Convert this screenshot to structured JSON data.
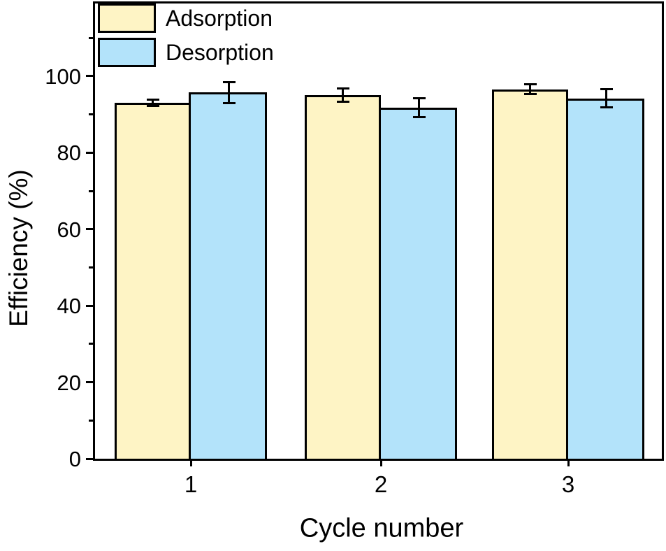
{
  "chart_data": {
    "type": "bar",
    "title": "",
    "xlabel": "Cycle number",
    "ylabel": "Efficiency (%)",
    "categories": [
      "1",
      "2",
      "3"
    ],
    "series": [
      {
        "name": "Adsorption",
        "color": "#FEF4C5",
        "values": [
          93.0,
          95.1,
          96.6
        ],
        "errors": [
          0.8,
          1.7,
          1.2
        ]
      },
      {
        "name": "Desorption",
        "color": "#B3E3FA",
        "values": [
          95.7,
          91.8,
          94.2
        ],
        "errors": [
          2.8,
          2.5,
          2.4
        ]
      }
    ],
    "ylim": [
      0,
      119
    ],
    "yticks_major": [
      0,
      20,
      40,
      60,
      80,
      100
    ],
    "yticks_minor": [
      10,
      30,
      50,
      70,
      90,
      110
    ],
    "grid": false,
    "legend_position": "top-left",
    "bar_border_color": "#000000",
    "error_bar_color": "#000000",
    "background_color": "#ffffff"
  }
}
